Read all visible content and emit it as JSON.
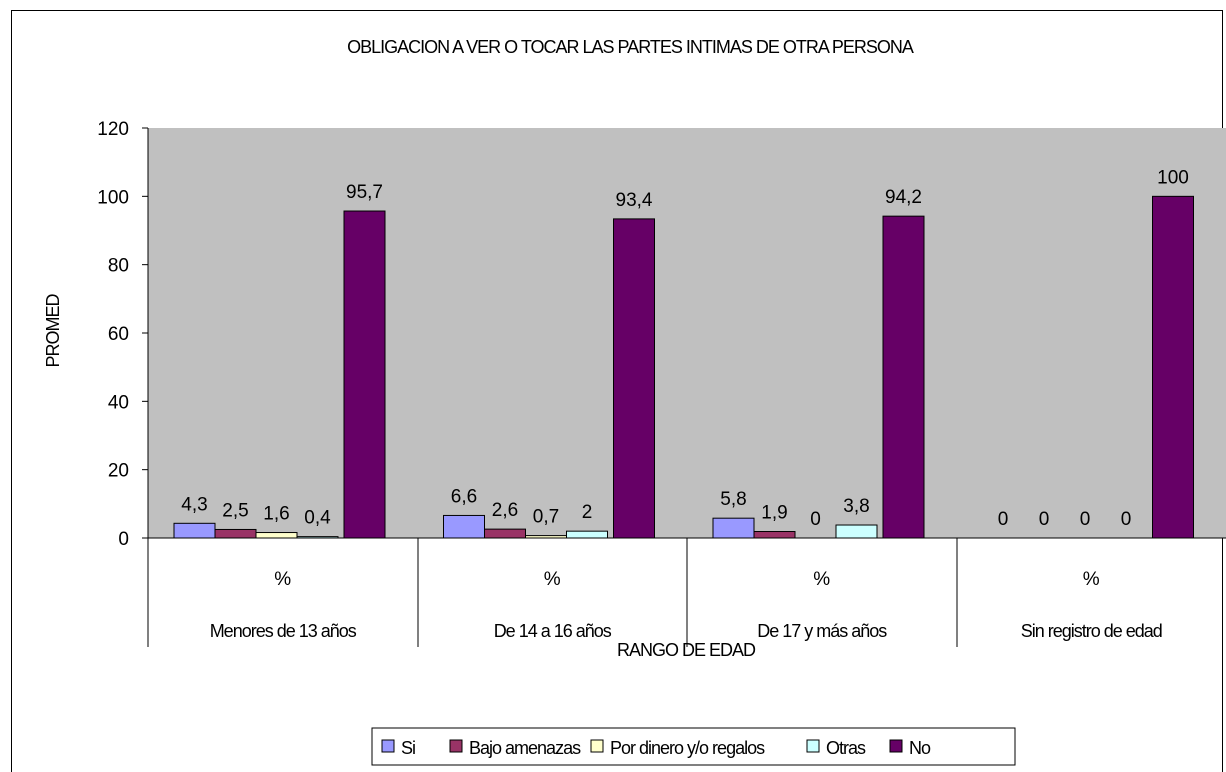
{
  "chart_data": {
    "type": "bar",
    "title": "OBLIGACION A VER O TOCAR LAS PARTES INTIMAS DE OTRA PERSONA",
    "xlabel": "RANGO DE EDAD",
    "ylabel": "PROMED",
    "ylim": [
      0,
      120
    ],
    "yticks": [
      "0",
      "20",
      "40",
      "60",
      "80",
      "100",
      "120"
    ],
    "grid": false,
    "legend_position": "bottom",
    "plot_background": "#c0c0c0",
    "categories": [
      {
        "unit": "%",
        "label": "Menores de 13 años"
      },
      {
        "unit": "%",
        "label": "De 14 a 16 años"
      },
      {
        "unit": "%",
        "label": "De 17 y más años"
      },
      {
        "unit": "%",
        "label": "Sin registro de  edad"
      }
    ],
    "series": [
      {
        "name": "Si",
        "color": "#9999ff",
        "values": [
          4.3,
          6.6,
          5.8,
          0
        ],
        "labels": [
          "4,3",
          "6,6",
          "5,8",
          "0"
        ]
      },
      {
        "name": "Bajo amenazas",
        "color": "#993366",
        "values": [
          2.5,
          2.6,
          1.9,
          0
        ],
        "labels": [
          "2,5",
          "2,6",
          "1,9",
          "0"
        ]
      },
      {
        "name": "Por dinero y/o regalos",
        "color": "#ffffcc",
        "values": [
          1.6,
          0.7,
          0,
          0
        ],
        "labels": [
          "1,6",
          "0,7",
          "0",
          "0"
        ]
      },
      {
        "name": "Otras",
        "color": "#ccffff",
        "values": [
          0.4,
          2,
          3.8,
          0
        ],
        "labels": [
          "0,4",
          "2",
          "3,8",
          "0"
        ]
      },
      {
        "name": "No",
        "color": "#660066",
        "values": [
          95.7,
          93.4,
          94.2,
          100
        ],
        "labels": [
          "95,7",
          "93,4",
          "94,2",
          "100"
        ]
      }
    ]
  }
}
